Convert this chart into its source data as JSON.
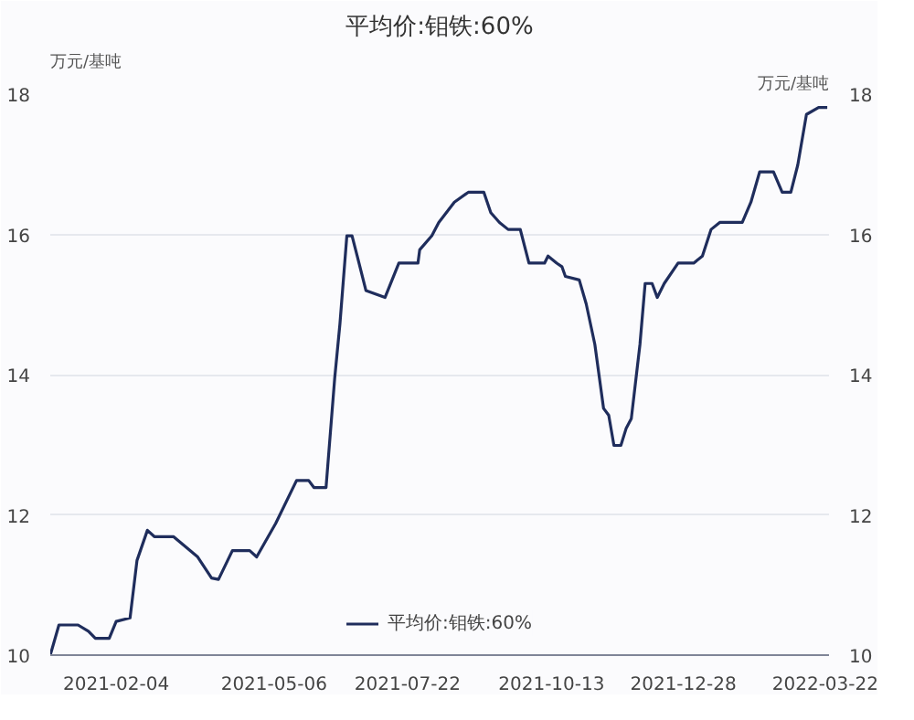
{
  "chart_data": {
    "type": "line",
    "title": "平均价:钼铁:60%",
    "ylabel": "万元/基吨",
    "y2label": "万元/基吨",
    "x": [
      "2020-12-28",
      "2021-01-02",
      "2021-01-13",
      "2021-01-19",
      "2021-01-23",
      "2021-01-31",
      "2021-02-04",
      "2021-02-12",
      "2021-02-16",
      "2021-02-22",
      "2021-02-26",
      "2021-03-09",
      "2021-03-23",
      "2021-03-31",
      "2021-04-04",
      "2021-04-12",
      "2021-04-22",
      "2021-04-26",
      "2021-05-07",
      "2021-05-19",
      "2021-05-26",
      "2021-05-29",
      "2021-06-05",
      "2021-06-10",
      "2021-06-13",
      "2021-06-17",
      "2021-06-20",
      "2021-06-23",
      "2021-06-28",
      "2021-07-09",
      "2021-07-17",
      "2021-07-28",
      "2021-07-29",
      "2021-08-05",
      "2021-08-09",
      "2021-08-18",
      "2021-08-26",
      "2021-09-04",
      "2021-09-08",
      "2021-09-13",
      "2021-09-18",
      "2021-09-25",
      "2021-09-30",
      "2021-10-09",
      "2021-10-11",
      "2021-10-16",
      "2021-10-19",
      "2021-10-21",
      "2021-10-29",
      "2021-11-02",
      "2021-11-07",
      "2021-11-12",
      "2021-11-15",
      "2021-11-18",
      "2021-11-22",
      "2021-11-25",
      "2021-11-28",
      "2021-12-03",
      "2021-12-06",
      "2021-12-10",
      "2021-12-13",
      "2021-12-17",
      "2021-12-25",
      "2022-01-03",
      "2022-01-08",
      "2022-01-13",
      "2022-01-18",
      "2022-01-31",
      "2022-02-05",
      "2022-02-10",
      "2022-02-18",
      "2022-02-23",
      "2022-02-28",
      "2022-03-04",
      "2022-03-09",
      "2022-03-16",
      "2022-03-21"
    ],
    "series": [
      {
        "name": "平均价:钼铁:60%",
        "color": "#1f2d5c",
        "values": [
          10.0,
          10.43,
          10.43,
          10.34,
          10.24,
          10.24,
          10.48,
          10.53,
          11.35,
          11.78,
          11.69,
          11.69,
          11.4,
          11.1,
          11.08,
          11.49,
          11.49,
          11.4,
          11.88,
          12.49,
          12.49,
          12.39,
          12.39,
          13.95,
          14.72,
          15.98,
          15.98,
          15.69,
          15.2,
          15.1,
          15.59,
          15.59,
          15.78,
          15.98,
          16.17,
          16.46,
          16.6,
          16.6,
          16.31,
          16.17,
          16.07,
          16.07,
          15.59,
          15.59,
          15.69,
          15.59,
          15.54,
          15.4,
          15.35,
          15.01,
          14.43,
          13.52,
          13.42,
          12.99,
          12.99,
          13.23,
          13.37,
          14.43,
          15.3,
          15.3,
          15.1,
          15.3,
          15.59,
          15.59,
          15.69,
          16.07,
          16.17,
          16.17,
          16.46,
          16.89,
          16.89,
          16.6,
          16.6,
          16.99,
          17.71,
          17.81,
          17.81
        ]
      }
    ],
    "xlim": [
      "2020-12-28",
      "2022-03-22"
    ],
    "xticks": [
      "2021-02-04",
      "2021-05-06",
      "2021-07-22",
      "2021-10-13",
      "2021-12-28",
      "2022-03-22"
    ],
    "ylim": [
      10,
      18
    ],
    "yticks": [
      10,
      12,
      14,
      16,
      18
    ],
    "y2lim": [
      10,
      18
    ],
    "y2ticks": [
      10,
      12,
      14,
      16,
      18
    ],
    "grid": "y",
    "legend": "bottom",
    "marker": "none",
    "line_style": "solid"
  }
}
